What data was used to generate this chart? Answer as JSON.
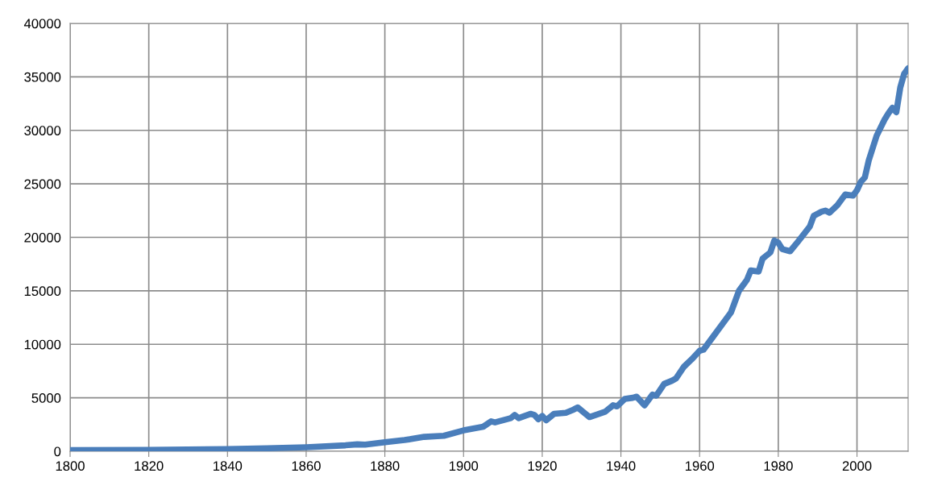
{
  "chart_data": {
    "type": "line",
    "x": [
      1800,
      1820,
      1840,
      1850,
      1860,
      1870,
      1873,
      1875,
      1880,
      1885,
      1890,
      1895,
      1900,
      1905,
      1907,
      1908,
      1912,
      1913,
      1914,
      1917,
      1918,
      1919,
      1920,
      1921,
      1923,
      1926,
      1928,
      1929,
      1932,
      1936,
      1938,
      1939,
      1941,
      1943,
      1944,
      1946,
      1948,
      1949,
      1951,
      1953,
      1954,
      1956,
      1958,
      1960,
      1961,
      1963,
      1966,
      1968,
      1970,
      1972,
      1973,
      1975,
      1976,
      1978,
      1979,
      1980,
      1981,
      1983,
      1985,
      1988,
      1989,
      1991,
      1992,
      1993,
      1995,
      1997,
      1999,
      2000,
      2001,
      2002,
      2003,
      2005,
      2007,
      2008,
      2009,
      2010,
      2011,
      2012,
      2013
    ],
    "series": [
      {
        "color": "#4a7ebb",
        "values": [
          100,
          120,
          200,
          280,
          380,
          560,
          650,
          620,
          850,
          1050,
          1350,
          1450,
          1950,
          2300,
          2800,
          2700,
          3100,
          3400,
          3100,
          3500,
          3400,
          3000,
          3300,
          2900,
          3500,
          3600,
          3900,
          4100,
          3200,
          3700,
          4300,
          4200,
          4900,
          5000,
          5100,
          4300,
          5300,
          5200,
          6300,
          6600,
          6800,
          7900,
          8600,
          9400,
          9500,
          10500,
          12000,
          13000,
          15000,
          16000,
          16900,
          16800,
          18000,
          18600,
          19700,
          19500,
          18900,
          18700,
          19600,
          21000,
          22000,
          22400,
          22500,
          22300,
          23000,
          24000,
          23900,
          24400,
          25200,
          25600,
          27200,
          29500,
          31000,
          31600,
          32100,
          31700,
          34000,
          35300,
          35800
        ]
      }
    ],
    "xlim": [
      1800,
      2013
    ],
    "xticks": [
      1800,
      1820,
      1840,
      1860,
      1880,
      1900,
      1920,
      1940,
      1960,
      1980,
      2000
    ],
    "ylim": [
      0,
      40000
    ],
    "yticks": [
      0,
      5000,
      10000,
      15000,
      20000,
      25000,
      30000,
      35000,
      40000
    ],
    "grid": true,
    "legend": false,
    "marker": "none",
    "line_style": "solid"
  }
}
